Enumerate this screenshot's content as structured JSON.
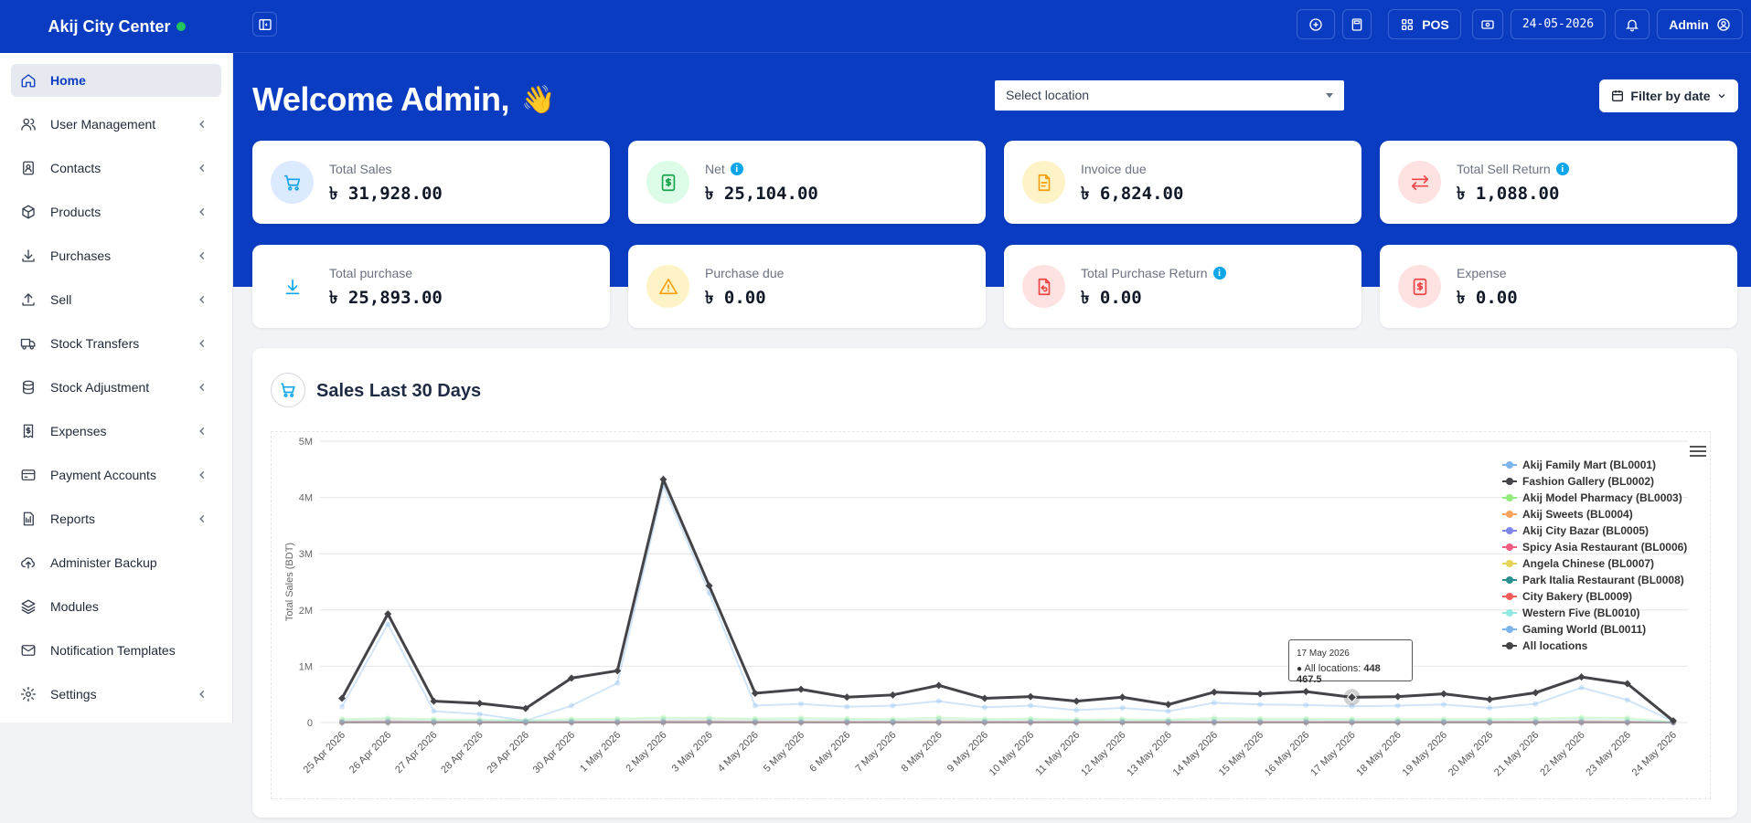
{
  "brand": {
    "name": "Akij City Center",
    "status_color": "#22c55e"
  },
  "sidebar": {
    "items": [
      {
        "label": "Home",
        "icon": "home-icon",
        "active": true,
        "has_children": false
      },
      {
        "label": "User Management",
        "icon": "users-icon",
        "has_children": true
      },
      {
        "label": "Contacts",
        "icon": "contacts-icon",
        "has_children": true
      },
      {
        "label": "Products",
        "icon": "box-icon",
        "has_children": true
      },
      {
        "label": "Purchases",
        "icon": "download-icon",
        "has_children": true
      },
      {
        "label": "Sell",
        "icon": "upload-icon",
        "has_children": true
      },
      {
        "label": "Stock Transfers",
        "icon": "truck-icon",
        "has_children": true
      },
      {
        "label": "Stock Adjustment",
        "icon": "database-icon",
        "has_children": true
      },
      {
        "label": "Expenses",
        "icon": "receipt-icon",
        "has_children": true
      },
      {
        "label": "Payment Accounts",
        "icon": "credit-card-icon",
        "has_children": true
      },
      {
        "label": "Reports",
        "icon": "report-icon",
        "has_children": true
      },
      {
        "label": "Administer Backup",
        "icon": "cloud-upload-icon",
        "has_children": false
      },
      {
        "label": "Modules",
        "icon": "layers-icon",
        "has_children": false
      },
      {
        "label": "Notification Templates",
        "icon": "mail-icon",
        "has_children": false
      },
      {
        "label": "Settings",
        "icon": "gear-icon",
        "has_children": true
      }
    ]
  },
  "topbar": {
    "pos_label": "POS",
    "date": "24-05-2026",
    "user_label": "Admin"
  },
  "hero": {
    "welcome": "Welcome Admin,",
    "wave": "👋",
    "location_placeholder": "Select location",
    "filter_label": "Filter by date"
  },
  "stats": [
    {
      "label": "Total Sales",
      "value": "৳ 31,928.00",
      "icon": "cart-icon",
      "info": false,
      "bg": "#dbeafe",
      "fg": "#0ea5e9"
    },
    {
      "label": "Net",
      "value": "৳ 25,104.00",
      "icon": "money-icon",
      "info": true,
      "bg": "#dcfce7",
      "fg": "#16a34a"
    },
    {
      "label": "Invoice due",
      "value": "৳ 6,824.00",
      "icon": "document-icon",
      "info": false,
      "bg": "#fef3c7",
      "fg": "#f59e0b"
    },
    {
      "label": "Total Sell Return",
      "value": "৳ 1,088.00",
      "icon": "swap-icon",
      "info": true,
      "bg": "#fee2e2",
      "fg": "#ef4444"
    },
    {
      "label": "Total purchase",
      "value": "৳ 25,893.00",
      "icon": "download-icon",
      "info": false,
      "bg": "#ffffff",
      "fg": "#0ea5e9"
    },
    {
      "label": "Purchase due",
      "value": "৳ 0.00",
      "icon": "warning-icon",
      "info": false,
      "bg": "#fef3c7",
      "fg": "#f59e0b"
    },
    {
      "label": "Total Purchase Return",
      "value": "৳ 0.00",
      "icon": "return-doc-icon",
      "info": true,
      "bg": "#fee2e2",
      "fg": "#ef4444"
    },
    {
      "label": "Expense",
      "value": "৳ 0.00",
      "icon": "money-doc-icon",
      "info": false,
      "bg": "#fee2e2",
      "fg": "#ef4444"
    }
  ],
  "chart_section": {
    "title": "Sales Last 30 Days"
  },
  "chart_data": {
    "type": "line",
    "title": "Sales Last 30 Days",
    "ylabel": "Total Sales (BDT)",
    "ylim": [
      0,
      5000000
    ],
    "yticks": [
      "0",
      "1M",
      "2M",
      "3M",
      "4M",
      "5M"
    ],
    "categories": [
      "25 Apr 2026",
      "26 Apr 2026",
      "27 Apr 2026",
      "28 Apr 2026",
      "29 Apr 2026",
      "30 Apr 2026",
      "1 May 2026",
      "2 May 2026",
      "3 May 2026",
      "4 May 2026",
      "5 May 2026",
      "6 May 2026",
      "7 May 2026",
      "8 May 2026",
      "9 May 2026",
      "10 May 2026",
      "11 May 2026",
      "12 May 2026",
      "13 May 2026",
      "14 May 2026",
      "15 May 2026",
      "16 May 2026",
      "17 May 2026",
      "18 May 2026",
      "19 May 2026",
      "20 May 2026",
      "21 May 2026",
      "22 May 2026",
      "23 May 2026",
      "24 May 2026"
    ],
    "legend_position": "top-right",
    "series": [
      {
        "name": "Akij Family Mart (BL0001)",
        "color": "#7cb5ec",
        "values": [
          280000,
          1750000,
          200000,
          150000,
          30000,
          300000,
          700000,
          4200000,
          2300000,
          300000,
          330000,
          280000,
          300000,
          380000,
          270000,
          300000,
          220000,
          260000,
          200000,
          350000,
          320000,
          310000,
          290000,
          300000,
          320000,
          260000,
          330000,
          620000,
          400000,
          20000
        ]
      },
      {
        "name": "Fashion Gallery (BL0002)",
        "color": "#434348",
        "values": [
          0,
          0,
          0,
          0,
          0,
          0,
          0,
          0,
          0,
          0,
          0,
          0,
          0,
          0,
          0,
          0,
          0,
          0,
          0,
          0,
          0,
          0,
          0,
          0,
          0,
          0,
          0,
          0,
          0,
          0
        ]
      },
      {
        "name": "Akij Model Pharmacy (BL0003)",
        "color": "#90ed7d",
        "values": [
          60000,
          80000,
          60000,
          50000,
          40000,
          60000,
          70000,
          90000,
          80000,
          70000,
          80000,
          70000,
          60000,
          90000,
          60000,
          70000,
          50000,
          60000,
          50000,
          80000,
          70000,
          70000,
          60000,
          60000,
          60000,
          60000,
          70000,
          90000,
          80000,
          10000
        ]
      },
      {
        "name": "Akij Sweets (BL0004)",
        "color": "#f7a35c",
        "values": [
          20000,
          30000,
          20000,
          20000,
          10000,
          20000,
          20000,
          30000,
          30000,
          20000,
          20000,
          20000,
          20000,
          30000,
          20000,
          20000,
          20000,
          20000,
          20000,
          20000,
          20000,
          20000,
          20000,
          20000,
          20000,
          20000,
          20000,
          30000,
          20000,
          0
        ]
      },
      {
        "name": "Akij City Bazar (BL0005)",
        "color": "#8085e9",
        "values": [
          10000,
          20000,
          10000,
          10000,
          10000,
          10000,
          10000,
          20000,
          20000,
          10000,
          10000,
          10000,
          10000,
          10000,
          10000,
          10000,
          10000,
          10000,
          10000,
          10000,
          10000,
          10000,
          10000,
          10000,
          10000,
          10000,
          10000,
          20000,
          10000,
          0
        ]
      },
      {
        "name": "Spicy Asia Restaurant (BL0006)",
        "color": "#f15c80",
        "values": [
          5000,
          5000,
          5000,
          5000,
          5000,
          5000,
          5000,
          5000,
          5000,
          5000,
          5000,
          5000,
          5000,
          5000,
          5000,
          5000,
          5000,
          5000,
          5000,
          5000,
          5000,
          5000,
          5000,
          5000,
          5000,
          5000,
          5000,
          5000,
          5000,
          0
        ]
      },
      {
        "name": "Angela Chinese (BL0007)",
        "color": "#e4d354",
        "values": [
          5000,
          5000,
          5000,
          5000,
          5000,
          5000,
          5000,
          5000,
          5000,
          5000,
          5000,
          5000,
          5000,
          5000,
          5000,
          5000,
          5000,
          5000,
          5000,
          5000,
          5000,
          5000,
          5000,
          5000,
          5000,
          5000,
          5000,
          5000,
          5000,
          0
        ]
      },
      {
        "name": "Park Italia Restaurant (BL0008)",
        "color": "#2b908f",
        "values": [
          5000,
          5000,
          5000,
          5000,
          5000,
          5000,
          5000,
          5000,
          5000,
          5000,
          5000,
          5000,
          5000,
          5000,
          5000,
          5000,
          5000,
          5000,
          5000,
          5000,
          5000,
          5000,
          5000,
          5000,
          5000,
          5000,
          5000,
          5000,
          5000,
          0
        ]
      },
      {
        "name": "City Bakery (BL0009)",
        "color": "#f45b5b",
        "values": [
          5000,
          5000,
          5000,
          5000,
          5000,
          5000,
          5000,
          5000,
          5000,
          5000,
          5000,
          5000,
          5000,
          5000,
          5000,
          5000,
          5000,
          5000,
          5000,
          5000,
          5000,
          5000,
          5000,
          5000,
          5000,
          5000,
          5000,
          5000,
          5000,
          0
        ]
      },
      {
        "name": "Western Five (BL0010)",
        "color": "#91e8e1",
        "values": [
          40000,
          60000,
          40000,
          40000,
          30000,
          40000,
          50000,
          60000,
          60000,
          50000,
          50000,
          50000,
          40000,
          60000,
          40000,
          50000,
          40000,
          40000,
          40000,
          50000,
          50000,
          50000,
          40000,
          40000,
          40000,
          40000,
          50000,
          60000,
          50000,
          10000
        ]
      },
      {
        "name": "Gaming World (BL0011)",
        "color": "#7cb5ec",
        "values": [
          5000,
          5000,
          5000,
          5000,
          5000,
          5000,
          5000,
          5000,
          5000,
          5000,
          5000,
          5000,
          5000,
          5000,
          5000,
          5000,
          5000,
          5000,
          5000,
          5000,
          5000,
          5000,
          5000,
          5000,
          5000,
          5000,
          5000,
          5000,
          5000,
          0
        ]
      },
      {
        "name": "All locations",
        "color": "#434348",
        "values": [
          430000,
          1930000,
          380000,
          340000,
          250000,
          790000,
          920000,
          4320000,
          2430000,
          520000,
          590000,
          450000,
          490000,
          660000,
          430000,
          460000,
          380000,
          450000,
          320000,
          540000,
          510000,
          550000,
          448467.5,
          460000,
          510000,
          410000,
          530000,
          810000,
          690000,
          30000
        ]
      }
    ],
    "tooltip": {
      "date": "17 May 2026",
      "series": "All locations:",
      "value": "448 467.5"
    }
  }
}
